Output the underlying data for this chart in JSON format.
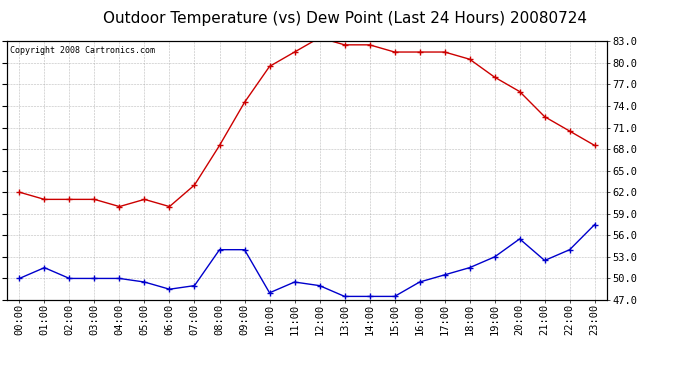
{
  "title": "Outdoor Temperature (vs) Dew Point (Last 24 Hours) 20080724",
  "copyright_text": "Copyright 2008 Cartronics.com",
  "x_labels": [
    "00:00",
    "01:00",
    "02:00",
    "03:00",
    "04:00",
    "05:00",
    "06:00",
    "07:00",
    "08:00",
    "09:00",
    "10:00",
    "11:00",
    "12:00",
    "13:00",
    "14:00",
    "15:00",
    "16:00",
    "17:00",
    "18:00",
    "19:00",
    "20:00",
    "21:00",
    "22:00",
    "23:00"
  ],
  "temp_data": [
    62.0,
    61.0,
    61.0,
    61.0,
    60.0,
    61.0,
    60.0,
    63.0,
    68.5,
    74.5,
    79.5,
    81.5,
    83.5,
    82.5,
    82.5,
    81.5,
    81.5,
    81.5,
    80.5,
    78.0,
    76.0,
    72.5,
    70.5,
    68.5
  ],
  "dew_data": [
    50.0,
    51.5,
    50.0,
    50.0,
    50.0,
    49.5,
    48.5,
    49.0,
    54.0,
    54.0,
    48.0,
    49.5,
    49.0,
    47.5,
    47.5,
    47.5,
    49.5,
    50.5,
    51.5,
    53.0,
    55.5,
    52.5,
    54.0,
    57.5
  ],
  "temp_color": "#cc0000",
  "dew_color": "#0000cc",
  "yticks_right": [
    47.0,
    50.0,
    53.0,
    56.0,
    59.0,
    62.0,
    65.0,
    68.0,
    71.0,
    74.0,
    77.0,
    80.0,
    83.0
  ],
  "background_color": "#ffffff",
  "plot_bg_color": "#ffffff",
  "grid_color": "#aaaaaa",
  "title_fontsize": 11,
  "tick_fontsize": 7.5,
  "copyright_fontsize": 6
}
